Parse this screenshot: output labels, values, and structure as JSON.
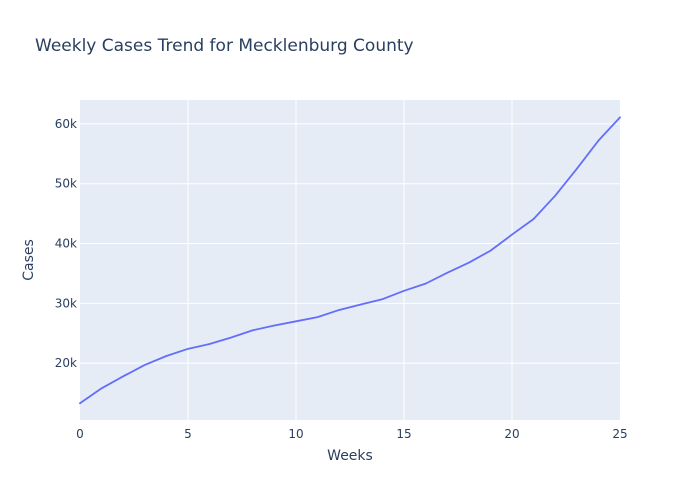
{
  "chart_data": {
    "type": "line",
    "title": "Weekly Cases Trend for Mecklenburg County",
    "xlabel": "Weeks",
    "ylabel": "Cases",
    "xlim": [
      0,
      25
    ],
    "ylim": [
      10500,
      64000
    ],
    "x_ticks": [
      0,
      5,
      10,
      15,
      20,
      25
    ],
    "x_tick_labels": [
      "0",
      "5",
      "10",
      "15",
      "20",
      "25"
    ],
    "y_ticks": [
      20000,
      30000,
      40000,
      50000,
      60000
    ],
    "y_tick_labels": [
      "20k",
      "30k",
      "40k",
      "50k",
      "60k"
    ],
    "grid": true,
    "series": [
      {
        "x": [
          0,
          1,
          2,
          3,
          4,
          5,
          6,
          7,
          8,
          9,
          10,
          11,
          12,
          13,
          14,
          15,
          16,
          17,
          18,
          19,
          20,
          21,
          22,
          23,
          24,
          25
        ],
        "values": [
          13300,
          15800,
          17800,
          19700,
          21200,
          22400,
          23200,
          24300,
          25500,
          26300,
          27000,
          27700,
          28900,
          29800,
          30700,
          32100,
          33300,
          35100,
          36800,
          38800,
          41500,
          44100,
          48000,
          52500,
          57200,
          61100
        ]
      }
    ],
    "colors": {
      "line": "#636efa",
      "plot_bg": "#e5ecf6",
      "grid": "#ffffff",
      "text": "#2a3f5f"
    }
  }
}
